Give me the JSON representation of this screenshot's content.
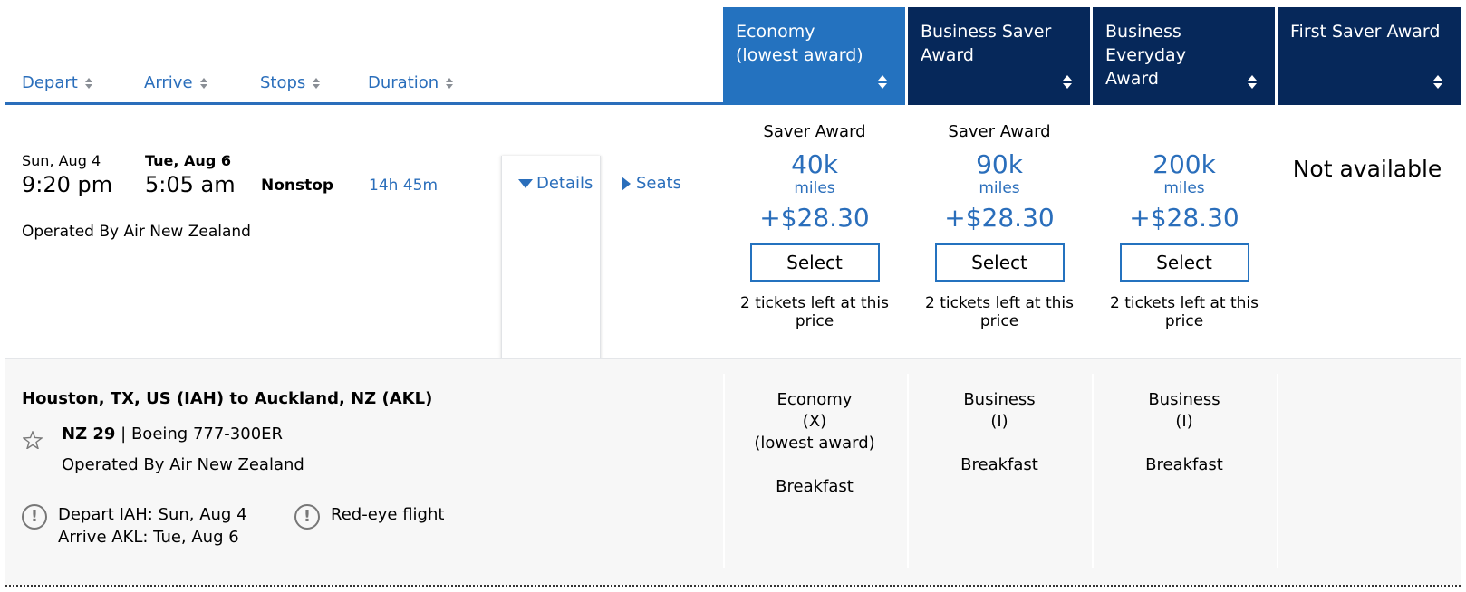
{
  "sort_headers": [
    {
      "label": "Depart"
    },
    {
      "label": "Arrive"
    },
    {
      "label": "Stops"
    },
    {
      "label": "Duration"
    }
  ],
  "fare_columns": [
    {
      "line1": "Economy",
      "line2": "(lowest award)"
    },
    {
      "line1": "Business Saver",
      "line2": "Award"
    },
    {
      "line1": "Business Everyday",
      "line2": "Award"
    },
    {
      "line1": "First Saver Award",
      "line2": ""
    }
  ],
  "flight": {
    "depart_date": "Sun, Aug 4",
    "depart_time": "9:20 pm",
    "arrive_date": "Tue, Aug 6",
    "arrive_time": "5:05 am",
    "stops": "Nonstop",
    "duration": "14h 45m",
    "operated_by": "Operated By Air New Zealand",
    "details_label": "Details",
    "seats_label": "Seats"
  },
  "fares": [
    {
      "award_type": "Saver Award",
      "miles": "40k",
      "miles_unit": "miles",
      "tax": "+$28.30",
      "select_label": "Select",
      "tickets_line1": "2 tickets left at this",
      "tickets_line2": "price"
    },
    {
      "award_type": "Saver Award",
      "miles": "90k",
      "miles_unit": "miles",
      "tax": "+$28.30",
      "select_label": "Select",
      "tickets_line1": "2 tickets left at this",
      "tickets_line2": "price"
    },
    {
      "award_type": "",
      "miles": "200k",
      "miles_unit": "miles",
      "tax": "+$28.30",
      "select_label": "Select",
      "tickets_line1": "2 tickets left at this",
      "tickets_line2": "price"
    }
  ],
  "first_saver_status": "Not available",
  "details_panel": {
    "route": "Houston, TX, US (IAH) to Auckland, NZ (AKL)",
    "flight_number": "NZ 29",
    "separator": " | ",
    "aircraft": "Boeing 777-300ER",
    "operated_by": "Operated By Air New Zealand",
    "alert_depart": "Depart IAH: Sun, Aug 4",
    "alert_arrive": "Arrive AKL: Tue, Aug 6",
    "alert_redeye": "Red-eye flight",
    "alert_icon": "!",
    "cabins": [
      {
        "line1": "Economy",
        "line2": "(X)",
        "line3": "(lowest award)",
        "meal": "Breakfast"
      },
      {
        "line1": "Business",
        "line2": "(I)",
        "line3": "",
        "meal": "Breakfast"
      },
      {
        "line1": "Business",
        "line2": "(I)",
        "line3": "",
        "meal": "Breakfast"
      }
    ]
  },
  "colors": {
    "link_blue": "#2a6ebb",
    "economy_header": "#2472bf",
    "business_header": "#06285a",
    "panel_bg": "#f7f7f7"
  }
}
